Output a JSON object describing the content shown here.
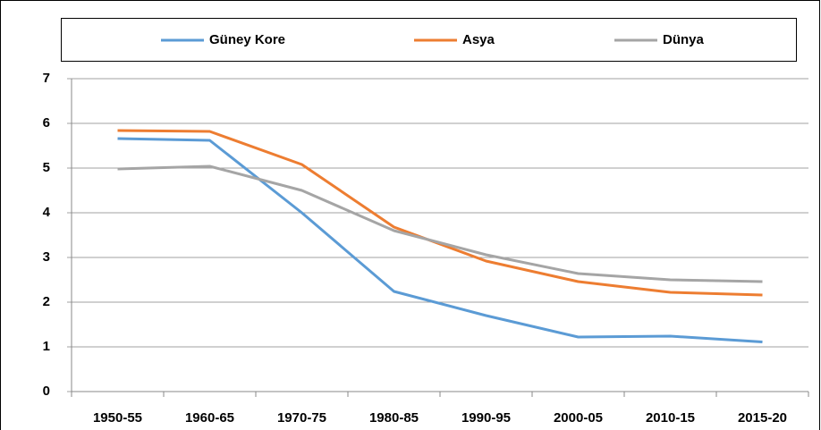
{
  "chart_data": {
    "type": "line",
    "categories": [
      "1950-55",
      "1960-65",
      "1970-75",
      "1980-85",
      "1990-95",
      "2000-05",
      "2010-15",
      "2015-20"
    ],
    "series": [
      {
        "name": "Güney Kore",
        "color": "#5b9bd5",
        "values": [
          5.66,
          5.62,
          4.0,
          2.24,
          1.7,
          1.22,
          1.24,
          1.11
        ]
      },
      {
        "name": "Asya",
        "color": "#ed7d31",
        "values": [
          5.84,
          5.82,
          5.08,
          3.68,
          2.92,
          2.46,
          2.22,
          2.16
        ]
      },
      {
        "name": "Dünya",
        "color": "#a5a5a5",
        "values": [
          4.98,
          5.04,
          4.5,
          3.6,
          3.06,
          2.64,
          2.5,
          2.46
        ]
      }
    ],
    "ylim": [
      0,
      7
    ],
    "yticks": [
      0,
      1,
      2,
      3,
      4,
      5,
      6,
      7
    ],
    "grid": true,
    "legend": "top"
  }
}
